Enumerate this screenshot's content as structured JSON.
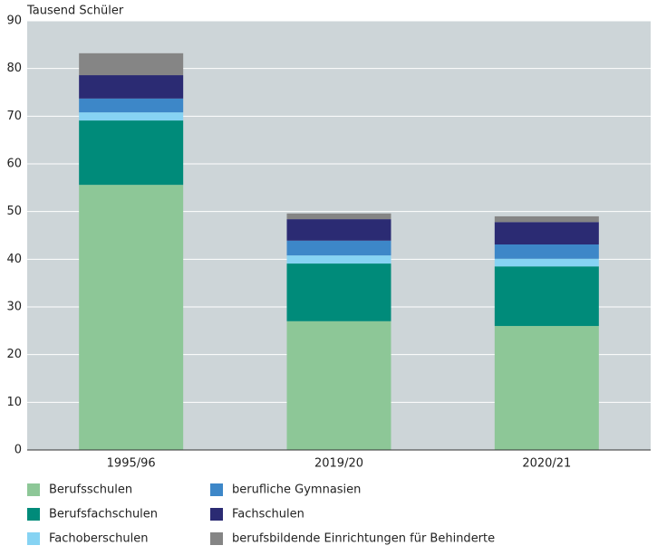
{
  "chart_data": {
    "type": "stacked_bar",
    "y_label": "Tausend Schüler",
    "categories": [
      "1995/96",
      "2019/20",
      "2020/21"
    ],
    "series": [
      {
        "name": "Berufsschulen",
        "color": "#8dc797",
        "values": [
          55.6,
          27.0,
          26.0
        ]
      },
      {
        "name": "Berufsfachschulen",
        "color": "#008b7a",
        "values": [
          13.5,
          12.1,
          12.5
        ]
      },
      {
        "name": "Fachoberschulen",
        "color": "#86d3f3",
        "values": [
          1.7,
          1.7,
          1.6
        ]
      },
      {
        "name": "berufliche Gymnasien",
        "color": "#3d87c8",
        "values": [
          2.9,
          3.1,
          3.0
        ]
      },
      {
        "name": "Fachschulen",
        "color": "#2b2b73",
        "values": [
          4.9,
          4.5,
          4.7
        ]
      },
      {
        "name": "berufsbildende Einrichtungen für Behinderte",
        "color": "#858585",
        "values": [
          4.6,
          1.2,
          1.2
        ]
      }
    ],
    "ylim": [
      0,
      90
    ],
    "yticks": [
      0,
      10,
      20,
      30,
      40,
      50,
      60,
      70,
      80,
      90
    ],
    "grid": true,
    "background": "#cdd5d8"
  }
}
